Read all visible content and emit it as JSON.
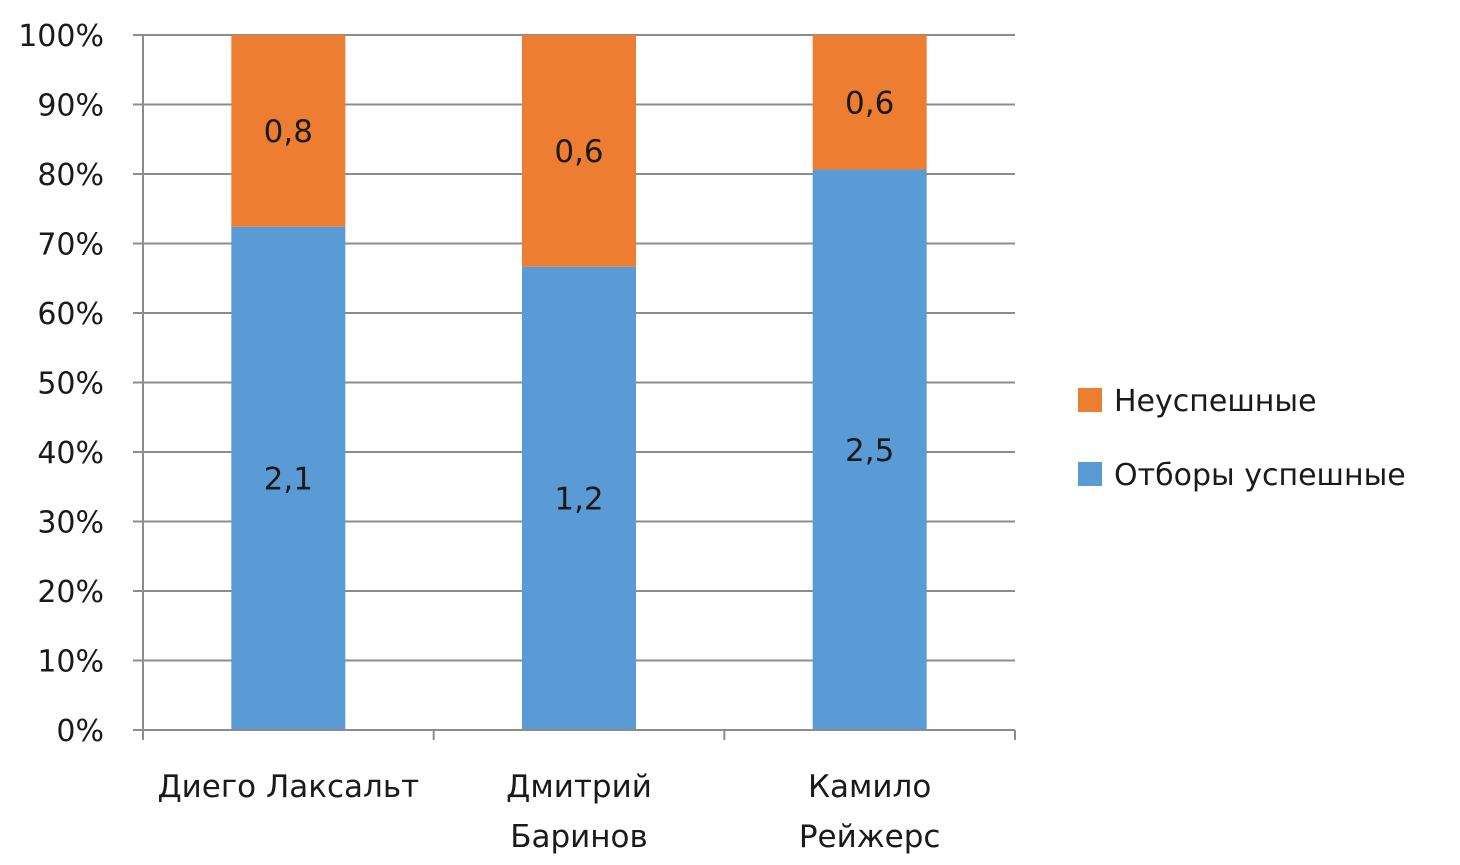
{
  "chart_data": {
    "type": "bar",
    "stacked": "percent",
    "categories": [
      "Диего Лаксальт",
      "Дмитрий Баринов",
      "Камило Рейжерс"
    ],
    "category_lines": [
      [
        "Диего Лаксальт"
      ],
      [
        "Дмитрий",
        "Баринов"
      ],
      [
        "Камило",
        "Рейжерс"
      ]
    ],
    "series": [
      {
        "name": "Отборы успешные",
        "values": [
          2.1,
          1.2,
          2.5
        ],
        "labels": [
          "2,1",
          "1,2",
          "2,5"
        ],
        "color": "#5b9bd5"
      },
      {
        "name": "Неуспешные",
        "values": [
          0.8,
          0.6,
          0.6
        ],
        "labels": [
          "0,8",
          "0,6",
          "0,6"
        ],
        "color": "#ed7d31"
      }
    ],
    "y_ticks": [
      "0%",
      "10%",
      "20%",
      "30%",
      "40%",
      "50%",
      "60%",
      "70%",
      "80%",
      "90%",
      "100%"
    ],
    "ylim": [
      0,
      100
    ],
    "grid": true,
    "legend": {
      "position": "right",
      "order": [
        "Неуспешные",
        "Отборы успешные"
      ]
    },
    "title": "",
    "xlabel": "",
    "ylabel": ""
  }
}
